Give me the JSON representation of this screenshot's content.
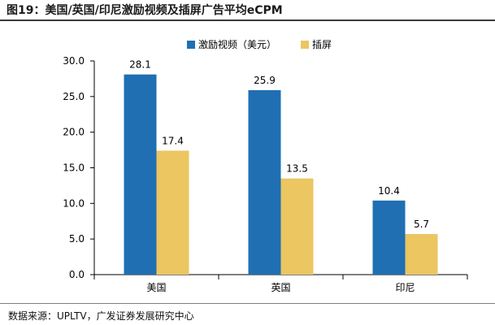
{
  "figure_title": "图19：美国/英国/印尼激励视频及插屏广告平均eCPM",
  "source_note": "数据来源：UPLTV，广发证券发展研究中心",
  "chart_data": {
    "type": "bar",
    "title": "美国/英国/印尼激励视频及插屏广告平均eCPM",
    "xlabel": "",
    "ylabel": "",
    "categories": [
      "美国",
      "英国",
      "印尼"
    ],
    "series": [
      {
        "name": "激励视频（美元）",
        "values": [
          28.1,
          25.9,
          10.4
        ],
        "color": "#1f6fb2",
        "labels": [
          "28.1",
          "25.9",
          "10.4"
        ]
      },
      {
        "name": "插屏",
        "values": [
          17.4,
          13.5,
          5.7
        ],
        "color": "#ebc661",
        "labels": [
          "17.4",
          "13.5",
          "5.7"
        ]
      }
    ],
    "ylim": [
      0,
      30
    ],
    "yticks": [
      0,
      5,
      10,
      15,
      20,
      25,
      30
    ],
    "ytick_labels": [
      "0.0",
      "5.0",
      "10.0",
      "15.0",
      "20.0",
      "25.0",
      "30.0"
    ],
    "grid": false,
    "legend_position": "top-right"
  }
}
